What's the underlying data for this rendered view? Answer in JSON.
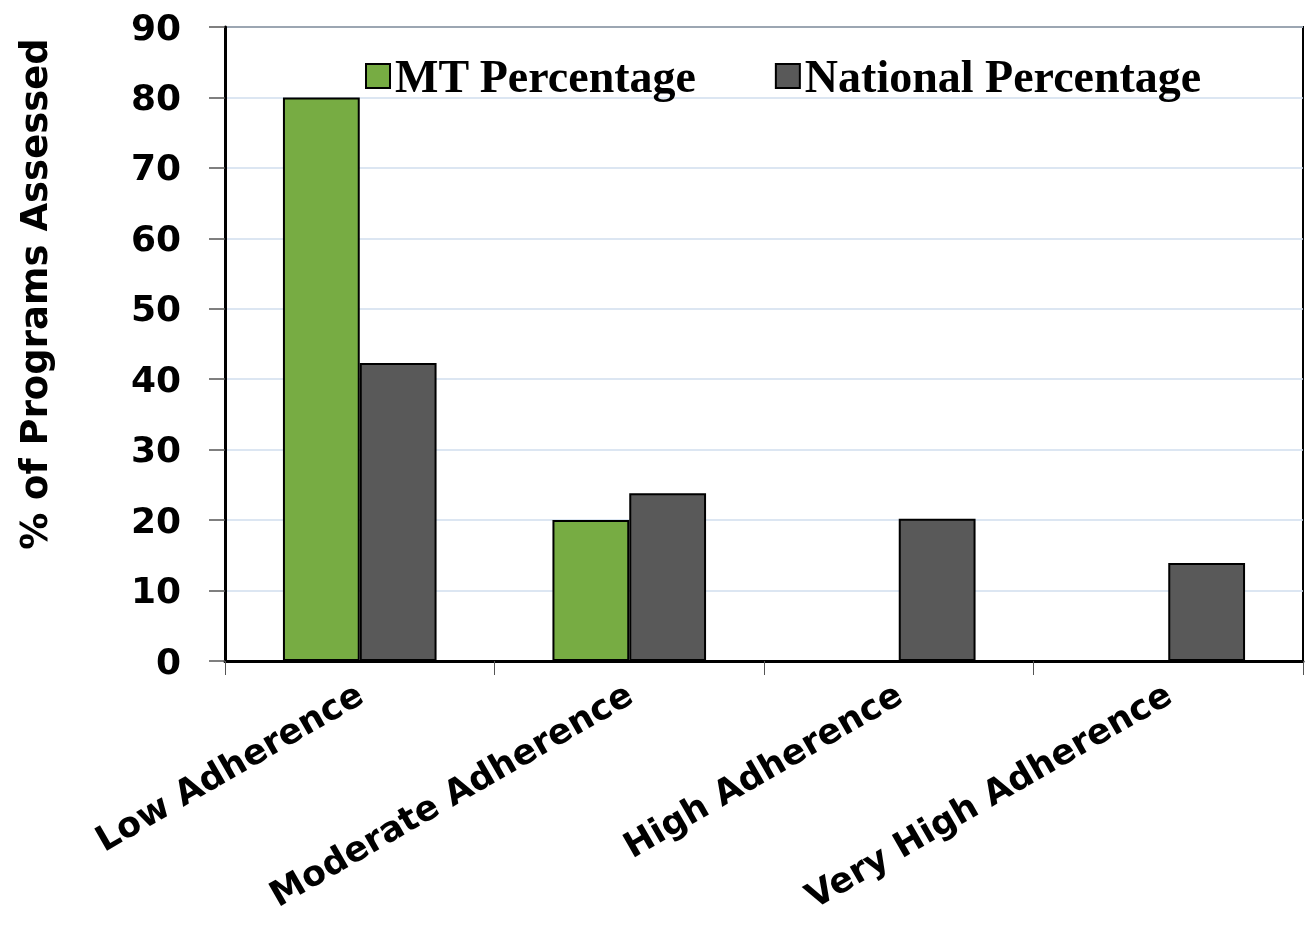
{
  "chart_data": {
    "type": "bar",
    "ylabel": "% of Programs Assessed",
    "categories": [
      "Low Adherence",
      "Moderate Adherence",
      "High Adherence",
      "Very High Adherence"
    ],
    "series": [
      {
        "name": "MT Percentage",
        "color": "#77ac43",
        "values": [
          80,
          20,
          null,
          null
        ]
      },
      {
        "name": "National Percentage",
        "color": "#595959",
        "values": [
          42.3,
          23.8,
          20.2,
          13.9
        ]
      }
    ],
    "ylim": [
      0,
      90
    ],
    "yticks": [
      0,
      10,
      20,
      30,
      40,
      50,
      60,
      70,
      80,
      90
    ],
    "grid": "y",
    "legend": "top"
  }
}
